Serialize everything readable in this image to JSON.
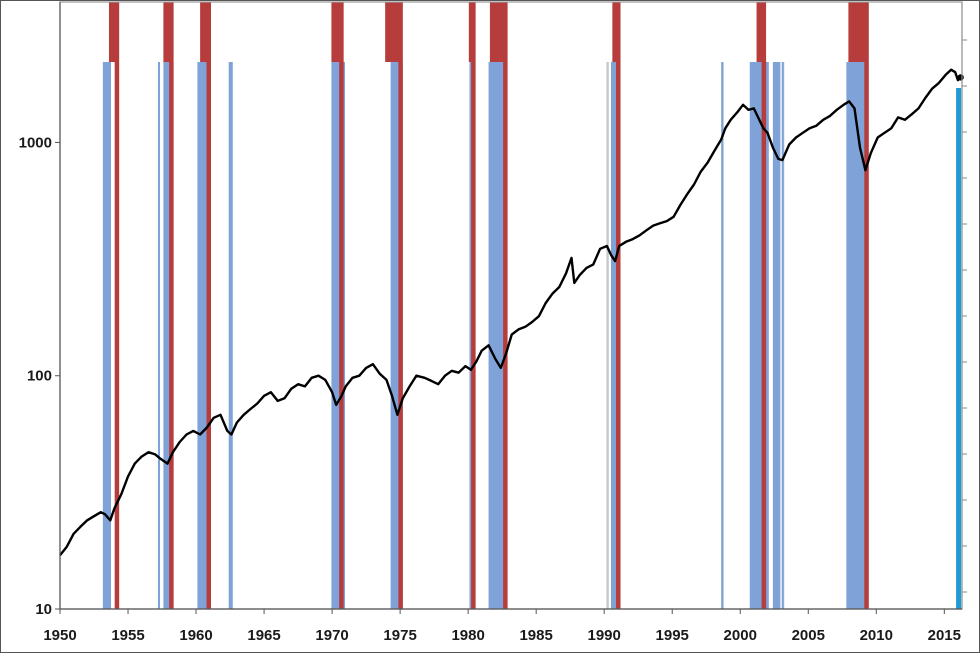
{
  "chart_data": {
    "type": "line",
    "title": "",
    "xlabel": "",
    "ylabel": "",
    "xlim": [
      1950,
      2016.3
    ],
    "ylim": [
      10,
      4000
    ],
    "y_scale": "log",
    "x_ticks": [
      "1950",
      "1955",
      "1960",
      "1965",
      "1970",
      "1975",
      "1980",
      "1985",
      "1990",
      "1995",
      "2000",
      "2005",
      "2010",
      "2015"
    ],
    "y_ticks": [
      "10",
      "100",
      "1000"
    ],
    "grid": false,
    "legend": "none",
    "colors": {
      "line": "#000000",
      "blue_band": "#7fa3d9",
      "red_band": "#b73c3c",
      "grey_line": "#c8c8c8",
      "latest_marker": "#1f9ad6",
      "frame": "#9a9a9a"
    },
    "series": [
      {
        "x": [
          1950.0,
          1950.5,
          1951.0,
          1951.5,
          1952.0,
          1952.5,
          1953.0,
          1953.3,
          1953.7,
          1954.0,
          1954.5,
          1955.0,
          1955.5,
          1956.0,
          1956.5,
          1957.0,
          1957.4,
          1957.9,
          1958.3,
          1958.8,
          1959.3,
          1959.8,
          1960.3,
          1960.8,
          1961.3,
          1961.8,
          1962.3,
          1962.6,
          1963.0,
          1963.5,
          1964.0,
          1964.5,
          1965.0,
          1965.5,
          1966.0,
          1966.5,
          1967.0,
          1967.5,
          1968.0,
          1968.5,
          1969.0,
          1969.5,
          1970.0,
          1970.3,
          1970.7,
          1971.0,
          1971.5,
          1972.0,
          1972.5,
          1973.0,
          1973.5,
          1974.0,
          1974.4,
          1974.8,
          1975.2,
          1975.7,
          1976.2,
          1976.8,
          1977.3,
          1977.8,
          1978.3,
          1978.8,
          1979.3,
          1979.8,
          1980.2,
          1980.6,
          1981.0,
          1981.5,
          1982.0,
          1982.4,
          1982.8,
          1983.2,
          1983.7,
          1984.2,
          1984.7,
          1985.2,
          1985.7,
          1986.2,
          1986.7,
          1987.2,
          1987.6,
          1987.8,
          1988.2,
          1988.7,
          1989.2,
          1989.7,
          1990.2,
          1990.5,
          1990.8,
          1991.1,
          1991.6,
          1992.1,
          1992.6,
          1993.1,
          1993.6,
          1994.1,
          1994.6,
          1995.1,
          1995.6,
          1996.1,
          1996.6,
          1997.1,
          1997.6,
          1998.1,
          1998.6,
          1998.9,
          1999.3,
          1999.8,
          2000.2,
          2000.6,
          2001.0,
          2001.4,
          2001.7,
          2002.0,
          2002.4,
          2002.8,
          2003.1,
          2003.6,
          2004.1,
          2004.6,
          2005.1,
          2005.6,
          2006.1,
          2006.6,
          2007.1,
          2007.6,
          2008.0,
          2008.4,
          2008.8,
          2009.2,
          2009.6,
          2010.1,
          2010.6,
          2011.1,
          2011.6,
          2012.1,
          2012.6,
          2013.1,
          2013.6,
          2014.1,
          2014.6,
          2015.1,
          2015.5,
          2015.8,
          2016.0,
          2016.2
        ],
        "values": [
          17,
          18.5,
          21,
          22.5,
          24,
          25,
          26,
          25.5,
          24,
          27,
          31,
          37,
          42,
          45,
          47,
          46,
          44,
          42,
          47,
          52,
          56,
          58,
          56,
          60,
          66,
          68,
          58,
          56,
          63,
          68,
          72,
          76,
          82,
          85,
          78,
          80,
          88,
          92,
          90,
          98,
          100,
          96,
          85,
          75,
          82,
          90,
          98,
          100,
          108,
          112,
          102,
          96,
          82,
          68,
          80,
          90,
          100,
          98,
          95,
          92,
          100,
          105,
          103,
          110,
          106,
          115,
          128,
          135,
          118,
          108,
          125,
          150,
          158,
          162,
          170,
          180,
          205,
          225,
          240,
          275,
          320,
          250,
          270,
          290,
          300,
          350,
          360,
          330,
          310,
          360,
          375,
          385,
          400,
          420,
          440,
          450,
          460,
          480,
          540,
          600,
          660,
          750,
          820,
          920,
          1030,
          1150,
          1250,
          1350,
          1450,
          1380,
          1400,
          1250,
          1150,
          1100,
          950,
          850,
          840,
          980,
          1050,
          1100,
          1150,
          1180,
          1250,
          1300,
          1380,
          1450,
          1500,
          1400,
          950,
          760,
          900,
          1050,
          1100,
          1150,
          1280,
          1250,
          1320,
          1400,
          1550,
          1700,
          1800,
          1950,
          2050,
          2000,
          1850,
          1900
        ]
      }
    ],
    "shaded_periods": {
      "blue": [
        [
          1953.15,
          1953.75
        ],
        [
          1957.2,
          1957.35
        ],
        [
          1957.6,
          1958.35
        ],
        [
          1960.1,
          1960.9
        ],
        [
          1962.4,
          1962.7
        ],
        [
          1969.95,
          1970.95
        ],
        [
          1974.3,
          1974.95
        ],
        [
          1975.0,
          1975.2
        ],
        [
          1980.1,
          1980.35
        ],
        [
          1981.5,
          1982.6
        ],
        [
          1990.5,
          1991.1
        ],
        [
          1998.6,
          1998.75
        ],
        [
          2000.7,
          2002.1
        ],
        [
          2002.4,
          2002.95
        ],
        [
          2003.05,
          2003.2
        ],
        [
          2007.8,
          2009.4
        ]
      ],
      "red": [
        [
          1953.6,
          1954.35
        ],
        [
          1957.6,
          1958.35
        ],
        [
          1960.3,
          1961.1
        ],
        [
          1969.95,
          1970.85
        ],
        [
          1973.9,
          1975.2
        ],
        [
          1980.05,
          1980.55
        ],
        [
          1981.6,
          1982.9
        ],
        [
          1990.6,
          1991.2
        ],
        [
          2001.2,
          2001.9
        ],
        [
          2007.95,
          2009.45
        ]
      ],
      "grey": [
        1960.35,
        1980.2,
        1990.25,
        1990.65,
        1998.7,
        2003.15
      ]
    },
    "latest_marker_x": 2016.05
  }
}
